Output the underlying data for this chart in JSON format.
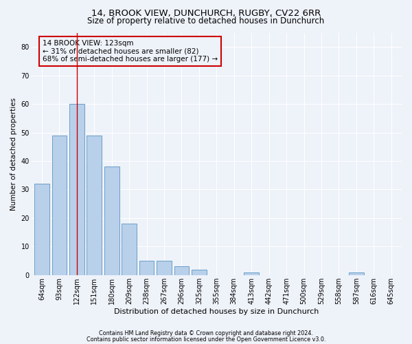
{
  "title1": "14, BROOK VIEW, DUNCHURCH, RUGBY, CV22 6RR",
  "title2": "Size of property relative to detached houses in Dunchurch",
  "xlabel": "Distribution of detached houses by size in Dunchurch",
  "ylabel": "Number of detached properties",
  "footnote1": "Contains HM Land Registry data © Crown copyright and database right 2024.",
  "footnote2": "Contains public sector information licensed under the Open Government Licence v3.0.",
  "categories": [
    "64sqm",
    "93sqm",
    "122sqm",
    "151sqm",
    "180sqm",
    "209sqm",
    "238sqm",
    "267sqm",
    "296sqm",
    "325sqm",
    "355sqm",
    "384sqm",
    "413sqm",
    "442sqm",
    "471sqm",
    "500sqm",
    "529sqm",
    "558sqm",
    "587sqm",
    "616sqm",
    "645sqm"
  ],
  "values": [
    32,
    49,
    60,
    49,
    38,
    18,
    5,
    5,
    3,
    2,
    0,
    0,
    1,
    0,
    0,
    0,
    0,
    0,
    1,
    0,
    0
  ],
  "bar_color": "#b8d0ea",
  "bar_edgecolor": "#6b9ec8",
  "vline_x": 2,
  "vline_color": "#cc0000",
  "annotation_text": "14 BROOK VIEW: 123sqm\n← 31% of detached houses are smaller (82)\n68% of semi-detached houses are larger (177) →",
  "annotation_box_edgecolor": "#cc0000",
  "annotation_fontsize": 7.5,
  "ylim": [
    0,
    85
  ],
  "yticks": [
    0,
    10,
    20,
    30,
    40,
    50,
    60,
    70,
    80
  ],
  "background_color": "#eef2f9",
  "grid_color": "#ffffff",
  "title1_fontsize": 9.5,
  "title2_fontsize": 8.5,
  "xlabel_fontsize": 8,
  "ylabel_fontsize": 7.5,
  "tick_fontsize": 7,
  "footnote_fontsize": 5.8
}
